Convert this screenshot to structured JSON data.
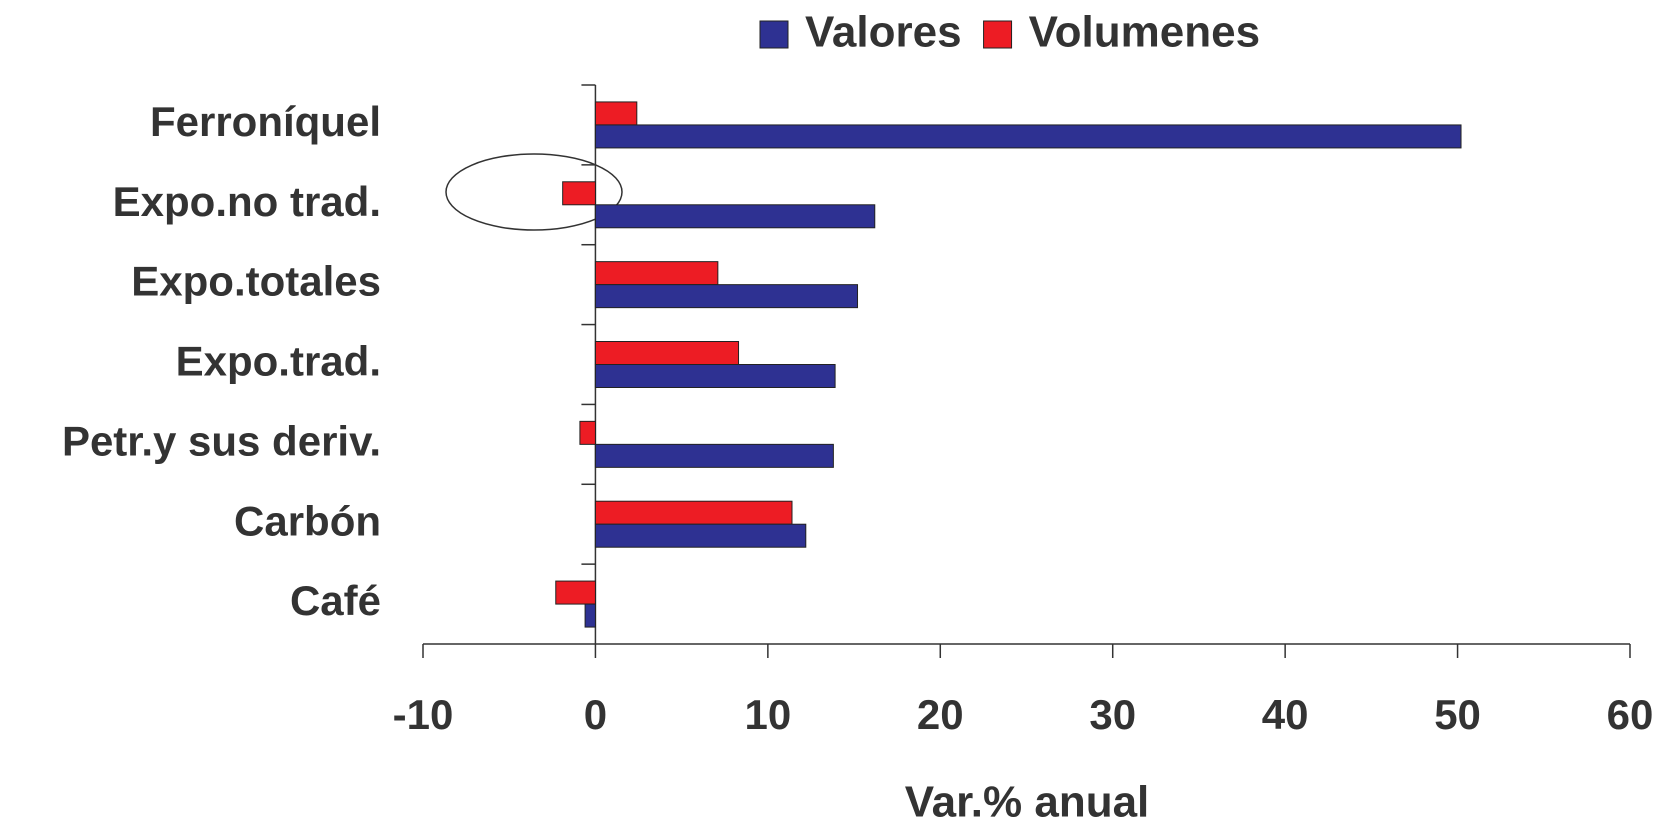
{
  "chart_data": {
    "type": "hbar",
    "xlabel": "Var.% anual",
    "categories": [
      "Ferroníquel",
      "Expo.no trad.",
      "Expo.totales",
      "Expo.trad.",
      "Petr.y sus deriv.",
      "Carbón",
      "Café"
    ],
    "series": [
      {
        "name": "Valores",
        "color": "#2e3192",
        "values": [
          50.2,
          16.2,
          15.2,
          13.9,
          13.8,
          12.2,
          -0.6
        ]
      },
      {
        "name": "Volumenes",
        "color": "#ed1c24",
        "values": [
          2.4,
          -1.9,
          7.1,
          8.3,
          -0.9,
          11.4,
          -2.3
        ]
      }
    ],
    "xlim": [
      -10,
      60
    ],
    "xticks": [
      -10,
      0,
      10,
      20,
      30,
      40,
      50,
      60
    ],
    "grid": false,
    "legend": "top"
  }
}
